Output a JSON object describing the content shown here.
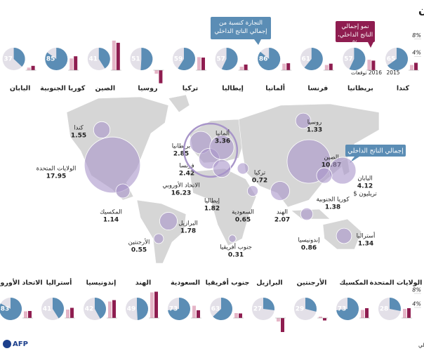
{
  "title": "مجموعة العشرين",
  "legend": {
    "trade": "التجارة كنسبة من إجمالي الناتج الداخلي",
    "growth": "نمو إجمالي الناتج الداخلي، %",
    "years": [
      "2015",
      "2016 توقعات"
    ],
    "gdp": "إجمالي الناتج الداخلي",
    "gdp_unit": "تريليون $"
  },
  "colors": {
    "trade": "#5b8db5",
    "pie_rest": "#e3e0e8",
    "year_2015": "#e5b5c7",
    "year_2016": "#8f1d50",
    "bubble": "#a895c9"
  },
  "growth_ticks": [
    {
      "value": 8,
      "label": "8%"
    },
    {
      "value": 4,
      "label": "4%"
    }
  ],
  "top_row": [
    {
      "country": "كندا",
      "trade": 65,
      "growth": [
        1.2,
        1.7
      ]
    },
    {
      "country": "بريطانيا",
      "trade": 57,
      "growth": [
        2.4,
        2.2
      ]
    },
    {
      "country": "فرنسا",
      "trade": 61,
      "growth": [
        1.2,
        1.5
      ]
    },
    {
      "country": "ألمانيا",
      "trade": 86,
      "growth": [
        1.5,
        1.6
      ]
    },
    {
      "country": "إيطاليا",
      "trade": 57,
      "growth": [
        0.8,
        1.3
      ]
    },
    {
      "country": "تركيا",
      "trade": 59,
      "growth": [
        3.0,
        2.9
      ]
    },
    {
      "country": "روسيا",
      "trade": 51,
      "growth": [
        -0.8,
        -3.0
      ]
    },
    {
      "country": "الصين",
      "trade": 41,
      "growth": [
        6.8,
        6.3
      ]
    },
    {
      "country": "كوريا الجنوبية",
      "trade": 85,
      "growth": [
        2.7,
        3.2
      ]
    },
    {
      "country": "اليابان",
      "trade": 37,
      "growth": [
        0.6,
        1.0
      ]
    }
  ],
  "bottom_row": [
    {
      "country": "الولايات المتحدة",
      "trade": 28,
      "growth": [
        2.6,
        2.8
      ]
    },
    {
      "country": "المكسيك",
      "trade": 73,
      "growth": [
        2.3,
        2.8
      ]
    },
    {
      "country": "الأرجنتين",
      "trade": 29,
      "growth": [
        0.4,
        -0.7
      ]
    },
    {
      "country": "البرازيل",
      "trade": 27,
      "growth": [
        -1.0,
        -4.0
      ]
    },
    {
      "country": "جنوب أفريقيا",
      "trade": 63,
      "growth": [
        1.4,
        1.3
      ]
    },
    {
      "country": "السعودية",
      "trade": 73,
      "growth": [
        3.5,
        2.2
      ]
    },
    {
      "country": "الهند",
      "trade": 49,
      "growth": [
        7.3,
        7.5
      ]
    },
    {
      "country": "إندونيسيا",
      "trade": 42,
      "growth": [
        4.7,
        5.1
      ]
    },
    {
      "country": "أستراليا",
      "trade": 41,
      "growth": [
        2.4,
        2.9
      ]
    },
    {
      "country": "الاتحاد الأوروبي",
      "trade": 83,
      "growth": [
        1.9,
        2.0
      ]
    }
  ],
  "map": [
    {
      "country": "كندا",
      "gdp": 1.55
    },
    {
      "country": "الولايات المتحدة",
      "gdp": 17.95
    },
    {
      "country": "المكسيك",
      "gdp": 1.14
    },
    {
      "country": "البرازيل",
      "gdp": 1.78
    },
    {
      "country": "الأرجنتين",
      "gdp": 0.55
    },
    {
      "country": "بريطانيا",
      "gdp": 2.85
    },
    {
      "country": "فرنسا",
      "gdp": 2.42
    },
    {
      "country": "الاتحاد الأوروبي",
      "gdp": 16.23
    },
    {
      "country": "ألمانيا",
      "gdp": 3.36
    },
    {
      "country": "إيطاليا",
      "gdp": 1.82
    },
    {
      "country": "تركيا",
      "gdp": 0.72
    },
    {
      "country": "السعودية",
      "gdp": 0.65
    },
    {
      "country": "جنوب أفريقيا",
      "gdp": 0.31
    },
    {
      "country": "روسيا",
      "gdp": 1.33
    },
    {
      "country": "الصين",
      "gdp": 10.87
    },
    {
      "country": "الهند",
      "gdp": 2.07
    },
    {
      "country": "اليابان",
      "gdp": 4.12
    },
    {
      "country": "كوريا الجنوبية",
      "gdp": 1.38
    },
    {
      "country": "إندونيسيا",
      "gdp": 0.86
    },
    {
      "country": "أستراليا",
      "gdp": 1.34
    }
  ],
  "source": "المصدر: البنك الدولي، صندوق النقد الدولي",
  "logo": "AFP"
}
